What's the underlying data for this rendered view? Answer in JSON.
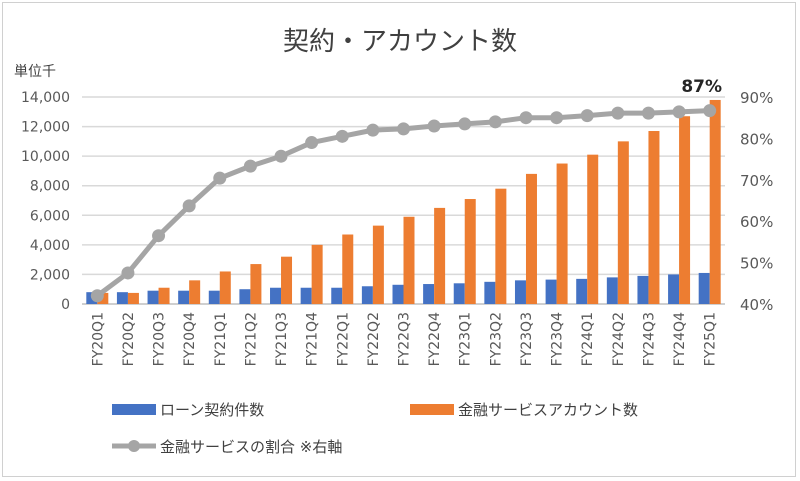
{
  "chart_data": {
    "type": "bar",
    "title": "契約・アカウント数",
    "y_unit_label": "単位千",
    "categories": [
      "FY20Q1",
      "FY20Q2",
      "FY20Q3",
      "FY20Q4",
      "FY21Q1",
      "FY21Q2",
      "FY21Q3",
      "FY21Q4",
      "FY22Q1",
      "FY22Q2",
      "FY22Q3",
      "FY22Q4",
      "FY23Q1",
      "FY23Q2",
      "FY23Q3",
      "FY23Q4",
      "FY24Q1",
      "FY24Q2",
      "FY24Q3",
      "FY24Q4",
      "FY25Q1"
    ],
    "ylim": [
      0,
      14000
    ],
    "yticks": [
      "0",
      "2,000",
      "4,000",
      "6,000",
      "8,000",
      "10,000",
      "12,000",
      "14,000"
    ],
    "y2lim": [
      40,
      90
    ],
    "y2ticks": [
      "40%",
      "50%",
      "60%",
      "70%",
      "80%",
      "90%"
    ],
    "series": [
      {
        "name": "ローン契約件数",
        "type": "bar",
        "axis": "left",
        "color": "#4472c4",
        "values": [
          800,
          800,
          900,
          900,
          900,
          1000,
          1100,
          1100,
          1100,
          1200,
          1300,
          1350,
          1400,
          1500,
          1600,
          1650,
          1700,
          1800,
          1900,
          2000,
          2100
        ]
      },
      {
        "name": "金融サービスアカウント数",
        "type": "bar",
        "axis": "left",
        "color": "#ed7d31",
        "values": [
          750,
          750,
          1100,
          1600,
          2200,
          2700,
          3200,
          4000,
          4700,
          5300,
          5900,
          6500,
          7100,
          7800,
          8800,
          9500,
          10100,
          11000,
          11700,
          12700,
          13800
        ]
      },
      {
        "name": "金融サービスの割合 ※右軸",
        "type": "line",
        "axis": "right",
        "color": "#a5a5a5",
        "values": [
          42,
          47.5,
          56.5,
          63.7,
          70.4,
          73.3,
          75.7,
          79,
          80.5,
          82,
          82.3,
          83,
          83.5,
          84,
          85,
          85,
          85.5,
          86.1,
          86.1,
          86.4,
          86.7
        ]
      }
    ],
    "annotation": "87%",
    "grid": true,
    "legend": "bottom"
  }
}
